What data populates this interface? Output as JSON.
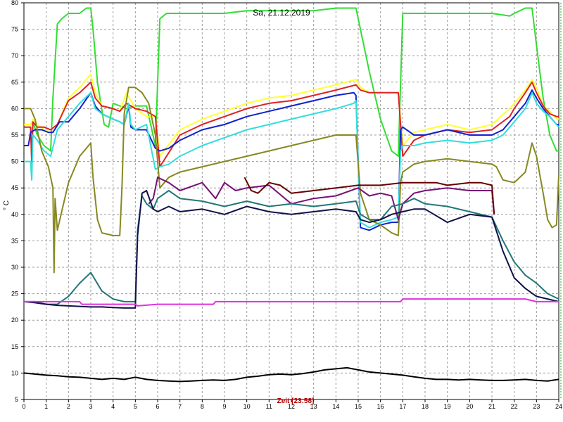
{
  "chart_data": {
    "type": "line",
    "title": "Sa, 21.12.2019",
    "xlabel": "Zeit [23:58]",
    "ylabel": "° C",
    "xlim": [
      0,
      24
    ],
    "ylim": [
      5,
      80
    ],
    "x_ticks": [
      "0",
      "1",
      "2",
      "3",
      "4",
      "5",
      "6",
      "7",
      "8",
      "9",
      "10",
      "11",
      "12",
      "13",
      "14",
      "15",
      "16",
      "17",
      "18",
      "19",
      "20",
      "21",
      "22",
      "23",
      "24"
    ],
    "y_ticks": [
      "5",
      "10",
      "15",
      "20",
      "25",
      "30",
      "35",
      "40",
      "45",
      "50",
      "55",
      "60",
      "65",
      "70",
      "75",
      "80"
    ],
    "grid": true,
    "series": [
      {
        "color": "#33dd33",
        "x": [
          0,
          0.3,
          0.4,
          0.6,
          0.9,
          1.2,
          1.3,
          1.5,
          1.7,
          2.0,
          2.5,
          2.8,
          3.0,
          3.1,
          3.3,
          3.6,
          3.8,
          4.0,
          4.3,
          4.6,
          5.0,
          5.5,
          5.9,
          6.1,
          6.4,
          7,
          8,
          9,
          10,
          11,
          12,
          13,
          14,
          14.9,
          15.2,
          15.5,
          16,
          16.5,
          16.8,
          17.0,
          17.3,
          18,
          19,
          20,
          21,
          21.8,
          22,
          22.5,
          22.8,
          23.0,
          23.3,
          23.6,
          23.9,
          24
        ],
        "y": [
          57,
          57,
          57.5,
          55,
          53,
          52,
          62,
          76,
          77,
          78,
          78,
          79,
          79,
          75,
          65,
          57,
          56.5,
          61,
          60.5,
          60,
          60.5,
          60.5,
          53,
          77,
          78,
          78,
          78,
          78,
          78.5,
          78.5,
          78.5,
          78.5,
          79,
          79,
          73,
          67,
          58,
          52,
          51,
          78,
          78,
          78,
          78,
          78,
          78,
          77.5,
          78,
          79,
          79,
          72,
          62,
          55,
          52,
          52
        ]
      },
      {
        "color": "#ffff33",
        "x": [
          0,
          0.3,
          0.4,
          0.6,
          0.9,
          1.2,
          1.5,
          2.0,
          2.5,
          3.0,
          3.2,
          3.5,
          4.0,
          4.3,
          4.6,
          5.0,
          5.5,
          5.9,
          6.1,
          7,
          8,
          9,
          10,
          11,
          12,
          13,
          14,
          14.9,
          15.1,
          15.5,
          16,
          16.8,
          17.0,
          17.5,
          18,
          19,
          20,
          21,
          21.8,
          22,
          22.5,
          22.8,
          23.0,
          23.3,
          23.6,
          23.9,
          24
        ],
        "y": [
          57,
          57,
          58,
          57,
          56,
          56,
          57,
          62,
          64,
          66.5,
          63,
          60.5,
          60,
          59.5,
          63,
          60,
          58.5,
          58.5,
          51,
          56,
          58,
          59.5,
          61,
          62,
          62.5,
          63.5,
          64.5,
          65.5,
          64,
          63,
          63,
          63,
          53,
          55.5,
          56,
          57,
          56,
          57,
          60,
          61,
          63.5,
          65.5,
          64,
          60.5,
          59.5,
          58,
          58
        ]
      },
      {
        "color": "#dd2222",
        "x": [
          0,
          0.3,
          0.35,
          0.4,
          0.6,
          0.9,
          1.2,
          1.5,
          2.0,
          2.5,
          3.0,
          3.2,
          3.5,
          4.0,
          4.3,
          4.6,
          5.0,
          5.5,
          5.9,
          6.1,
          7,
          8,
          9,
          10,
          11,
          12,
          13,
          14,
          14.9,
          15.1,
          15.5,
          16,
          16.8,
          17.0,
          17.5,
          18,
          19,
          20,
          21,
          21.8,
          22,
          22.5,
          22.8,
          23.0,
          23.3,
          23.6,
          23.9,
          24
        ],
        "y": [
          56.5,
          56.5,
          49.5,
          57.5,
          56.5,
          56.5,
          56,
          57,
          61.5,
          63,
          65,
          62,
          60.5,
          60,
          59.5,
          61,
          60,
          59.5,
          58.5,
          49,
          55,
          57,
          58.5,
          60,
          61,
          61.5,
          62.5,
          63.5,
          64.5,
          63.5,
          63,
          63,
          63,
          51,
          54,
          55,
          56,
          55.5,
          56,
          58.5,
          60,
          63,
          65,
          63,
          60.5,
          59,
          58.5,
          58.5
        ]
      },
      {
        "color": "#1122cc",
        "x": [
          0,
          0.2,
          0.3,
          0.5,
          0.8,
          1.1,
          1.3,
          1.6,
          2.0,
          2.5,
          3.0,
          3.2,
          3.5,
          4.0,
          4.3,
          4.5,
          4.7,
          4.8,
          5.0,
          5.5,
          5.9,
          6.1,
          6.5,
          7,
          8,
          9,
          10,
          11,
          12,
          13,
          14,
          14.8,
          14.9,
          15.1,
          15.5,
          16,
          16.5,
          16.8,
          16.9,
          17.0,
          17.5,
          18,
          19,
          20,
          21,
          21.5,
          22,
          22.5,
          22.8,
          23.0,
          23.3,
          23.6,
          23.9,
          24
        ],
        "y": [
          53,
          53,
          55.5,
          56,
          56,
          55.5,
          55.5,
          57.5,
          57.5,
          60,
          63,
          60.5,
          59,
          58,
          57.5,
          57,
          60.5,
          56.5,
          56,
          56,
          52.5,
          52,
          52.5,
          54,
          56,
          57,
          58.5,
          59.5,
          60.5,
          61.5,
          62.5,
          63,
          62.5,
          37.5,
          37,
          38,
          38.5,
          38.5,
          56,
          56.5,
          55,
          55,
          56,
          55,
          55,
          56,
          58.5,
          61,
          63.5,
          62,
          60,
          58.5,
          57,
          57
        ]
      },
      {
        "color": "#33dddd",
        "x": [
          0,
          0.3,
          0.35,
          0.4,
          0.6,
          0.9,
          1.2,
          1.5,
          2.0,
          2.5,
          3.0,
          3.2,
          3.5,
          4.0,
          4.3,
          4.5,
          4.7,
          4.8,
          5.0,
          5.5,
          5.9,
          6.1,
          6.5,
          7,
          8,
          9,
          10,
          11,
          12,
          13,
          14,
          14.8,
          14.9,
          15.1,
          15.5,
          16,
          16.5,
          16.8,
          16.9,
          17.0,
          17.5,
          18,
          19,
          20,
          21,
          21.5,
          22,
          22.5,
          22.8,
          23.0,
          23.3,
          23.6,
          23.9,
          24
        ],
        "y": [
          50,
          50,
          46.5,
          55,
          54,
          52,
          51,
          56,
          58.5,
          61,
          63,
          60,
          59,
          58,
          57.5,
          57,
          61,
          57,
          56,
          57,
          48.5,
          49,
          49.5,
          51,
          53,
          54.5,
          56,
          57,
          58,
          59,
          60,
          61,
          61.5,
          38.5,
          37.5,
          38.5,
          39,
          39.5,
          52,
          53,
          53,
          53.5,
          54,
          53.5,
          54,
          55,
          57.5,
          60,
          63,
          61,
          59.5,
          58.5,
          57,
          56.5
        ]
      },
      {
        "color": "#888822",
        "x": [
          0,
          0.3,
          0.5,
          0.8,
          1.1,
          1.3,
          1.35,
          1.4,
          1.5,
          2.0,
          2.5,
          3.0,
          3.1,
          3.3,
          3.5,
          4.0,
          4.3,
          4.4,
          4.5,
          4.7,
          5.0,
          5.3,
          5.6,
          5.9,
          6.1,
          6.5,
          7,
          8,
          9,
          10,
          11,
          12,
          13,
          14,
          14.9,
          15.1,
          15.5,
          16,
          16.5,
          16.8,
          16.9,
          17.0,
          17.5,
          18,
          19,
          20,
          21,
          21.2,
          21.5,
          22,
          22.5,
          22.8,
          23.0,
          23.3,
          23.5,
          23.7,
          23.9,
          24
        ],
        "y": [
          60,
          60,
          58,
          52,
          49,
          45,
          29,
          43,
          37,
          46,
          51,
          53.5,
          47,
          39,
          36.5,
          36,
          36,
          45,
          59,
          64,
          64,
          63,
          61,
          55,
          45,
          47,
          48,
          49,
          50,
          51,
          52,
          53,
          54,
          55,
          55,
          44,
          39,
          38,
          36.5,
          36,
          46,
          48,
          49.5,
          50,
          50.5,
          50,
          49.5,
          49,
          46.5,
          46,
          48,
          53.5,
          51,
          44,
          39,
          37.5,
          38,
          47.5
        ]
      },
      {
        "color": "#771177",
        "x": [
          5.6,
          5.8,
          6.0,
          6.5,
          7,
          8,
          8.6,
          9,
          9.5,
          10,
          11,
          12,
          13,
          14,
          15,
          15.5,
          16,
          16.5,
          16.8,
          17,
          17.5,
          18,
          19,
          20,
          21,
          21.1
        ],
        "y": [
          42,
          43,
          47,
          46,
          44.5,
          46,
          43,
          46,
          44.5,
          45,
          45.5,
          42,
          43,
          43.5,
          45,
          43.5,
          44,
          43.5,
          39,
          42,
          44,
          44.5,
          45,
          44.5,
          44.5,
          40
        ]
      },
      {
        "color": "#660000",
        "x": [
          9.9,
          10.2,
          10.5,
          11,
          11.5,
          12,
          13,
          14,
          15,
          16,
          17,
          17.5,
          18,
          18.5,
          19,
          20,
          20.5,
          21,
          21.1
        ],
        "y": [
          47,
          44.5,
          44,
          46,
          45.5,
          44,
          44.5,
          45,
          45.5,
          45.5,
          46,
          46,
          46,
          46,
          45.5,
          46,
          46,
          45.5,
          40
        ]
      },
      {
        "color": "#227777",
        "x": [
          0,
          0.5,
          1.0,
          1.5,
          2.0,
          2.5,
          3.0,
          3.5,
          4.0,
          4.5,
          5.0,
          5.1,
          5.3,
          5.5,
          5.8,
          6.0,
          6.5,
          7,
          8,
          9,
          10,
          11,
          12,
          13,
          14,
          14.9,
          15.1,
          15.5,
          16,
          16.5,
          17.0,
          17.5,
          18,
          19,
          20,
          21,
          21.5,
          22,
          22.5,
          23.0,
          23.5,
          24
        ],
        "y": [
          23.5,
          23.5,
          23,
          23,
          24.5,
          27,
          29,
          25.5,
          24,
          23.5,
          23.5,
          37,
          43.5,
          42,
          41,
          43,
          44.5,
          43,
          42.5,
          41.5,
          42.5,
          41.5,
          42,
          41.5,
          42,
          42.5,
          40,
          39,
          39,
          41.5,
          42,
          43,
          42,
          41.5,
          40.5,
          39.5,
          35,
          31,
          28.5,
          27,
          25,
          24
        ]
      },
      {
        "color": "#11114a",
        "x": [
          0,
          0.5,
          1.0,
          1.5,
          2.0,
          2.5,
          3.0,
          3.5,
          4.0,
          4.5,
          5.0,
          5.1,
          5.3,
          5.5,
          5.8,
          6.0,
          6.5,
          7,
          8,
          9,
          10,
          11,
          12,
          13,
          14,
          14.9,
          15.1,
          15.5,
          16,
          16.5,
          17.0,
          17.5,
          18,
          19,
          20,
          21,
          21.5,
          22,
          22.5,
          23.0,
          23.5,
          24
        ],
        "y": [
          23.5,
          23.3,
          23,
          22.8,
          22.7,
          22.6,
          22.5,
          22.5,
          22.4,
          22.3,
          22.3,
          36,
          44,
          44.5,
          41,
          40.5,
          41.5,
          40.5,
          41,
          40,
          41.5,
          40.5,
          40,
          40.5,
          41,
          40.5,
          39,
          38.5,
          39,
          40,
          40.5,
          41,
          41,
          38.5,
          40,
          39.5,
          33,
          28,
          26,
          24.5,
          24,
          23.5
        ]
      },
      {
        "color": "#dd33dd",
        "x": [
          0,
          1,
          2,
          2.5,
          2.6,
          3,
          4,
          5,
          5.1,
          6,
          7,
          8,
          8.5,
          8.6,
          9,
          10,
          11,
          12,
          13,
          14,
          15,
          16,
          16.9,
          17,
          18,
          19,
          20,
          21,
          22,
          22.5,
          23,
          24
        ],
        "y": [
          23.5,
          23.5,
          23.5,
          23.5,
          23,
          23,
          23,
          23,
          22.7,
          23,
          23,
          23,
          23,
          23.5,
          23.5,
          23.5,
          23.5,
          23.5,
          23.5,
          23.5,
          23.5,
          23.5,
          23.5,
          24,
          24,
          24,
          24,
          24,
          24,
          24,
          23.5,
          23.5
        ]
      },
      {
        "color": "#000000",
        "x": [
          0,
          0.5,
          1,
          1.5,
          2,
          2.5,
          3,
          3.5,
          4,
          4.5,
          5,
          5.5,
          6,
          6.5,
          7,
          7.5,
          8,
          8.5,
          9,
          9.5,
          10,
          10.5,
          11,
          11.5,
          12,
          12.5,
          13,
          13.5,
          14,
          14.5,
          15,
          15.5,
          16,
          16.5,
          17,
          17.5,
          18,
          18.5,
          19,
          19.5,
          20,
          20.5,
          21,
          21.5,
          22,
          22.5,
          23,
          23.5,
          24
        ],
        "y": [
          10,
          9.8,
          9.6,
          9.5,
          9.3,
          9.2,
          9.0,
          8.8,
          9.0,
          8.8,
          9.2,
          8.8,
          8.6,
          8.5,
          8.4,
          8.5,
          8.6,
          8.7,
          8.6,
          8.8,
          9.2,
          9.4,
          9.7,
          9.8,
          9.7,
          9.9,
          10.2,
          10.6,
          10.8,
          11,
          10.6,
          10.2,
          10,
          9.8,
          9.6,
          9.3,
          9.0,
          8.8,
          8.8,
          8.7,
          8.8,
          8.7,
          8.6,
          8.6,
          8.7,
          8.8,
          8.6,
          8.5,
          8.8
        ]
      }
    ]
  }
}
